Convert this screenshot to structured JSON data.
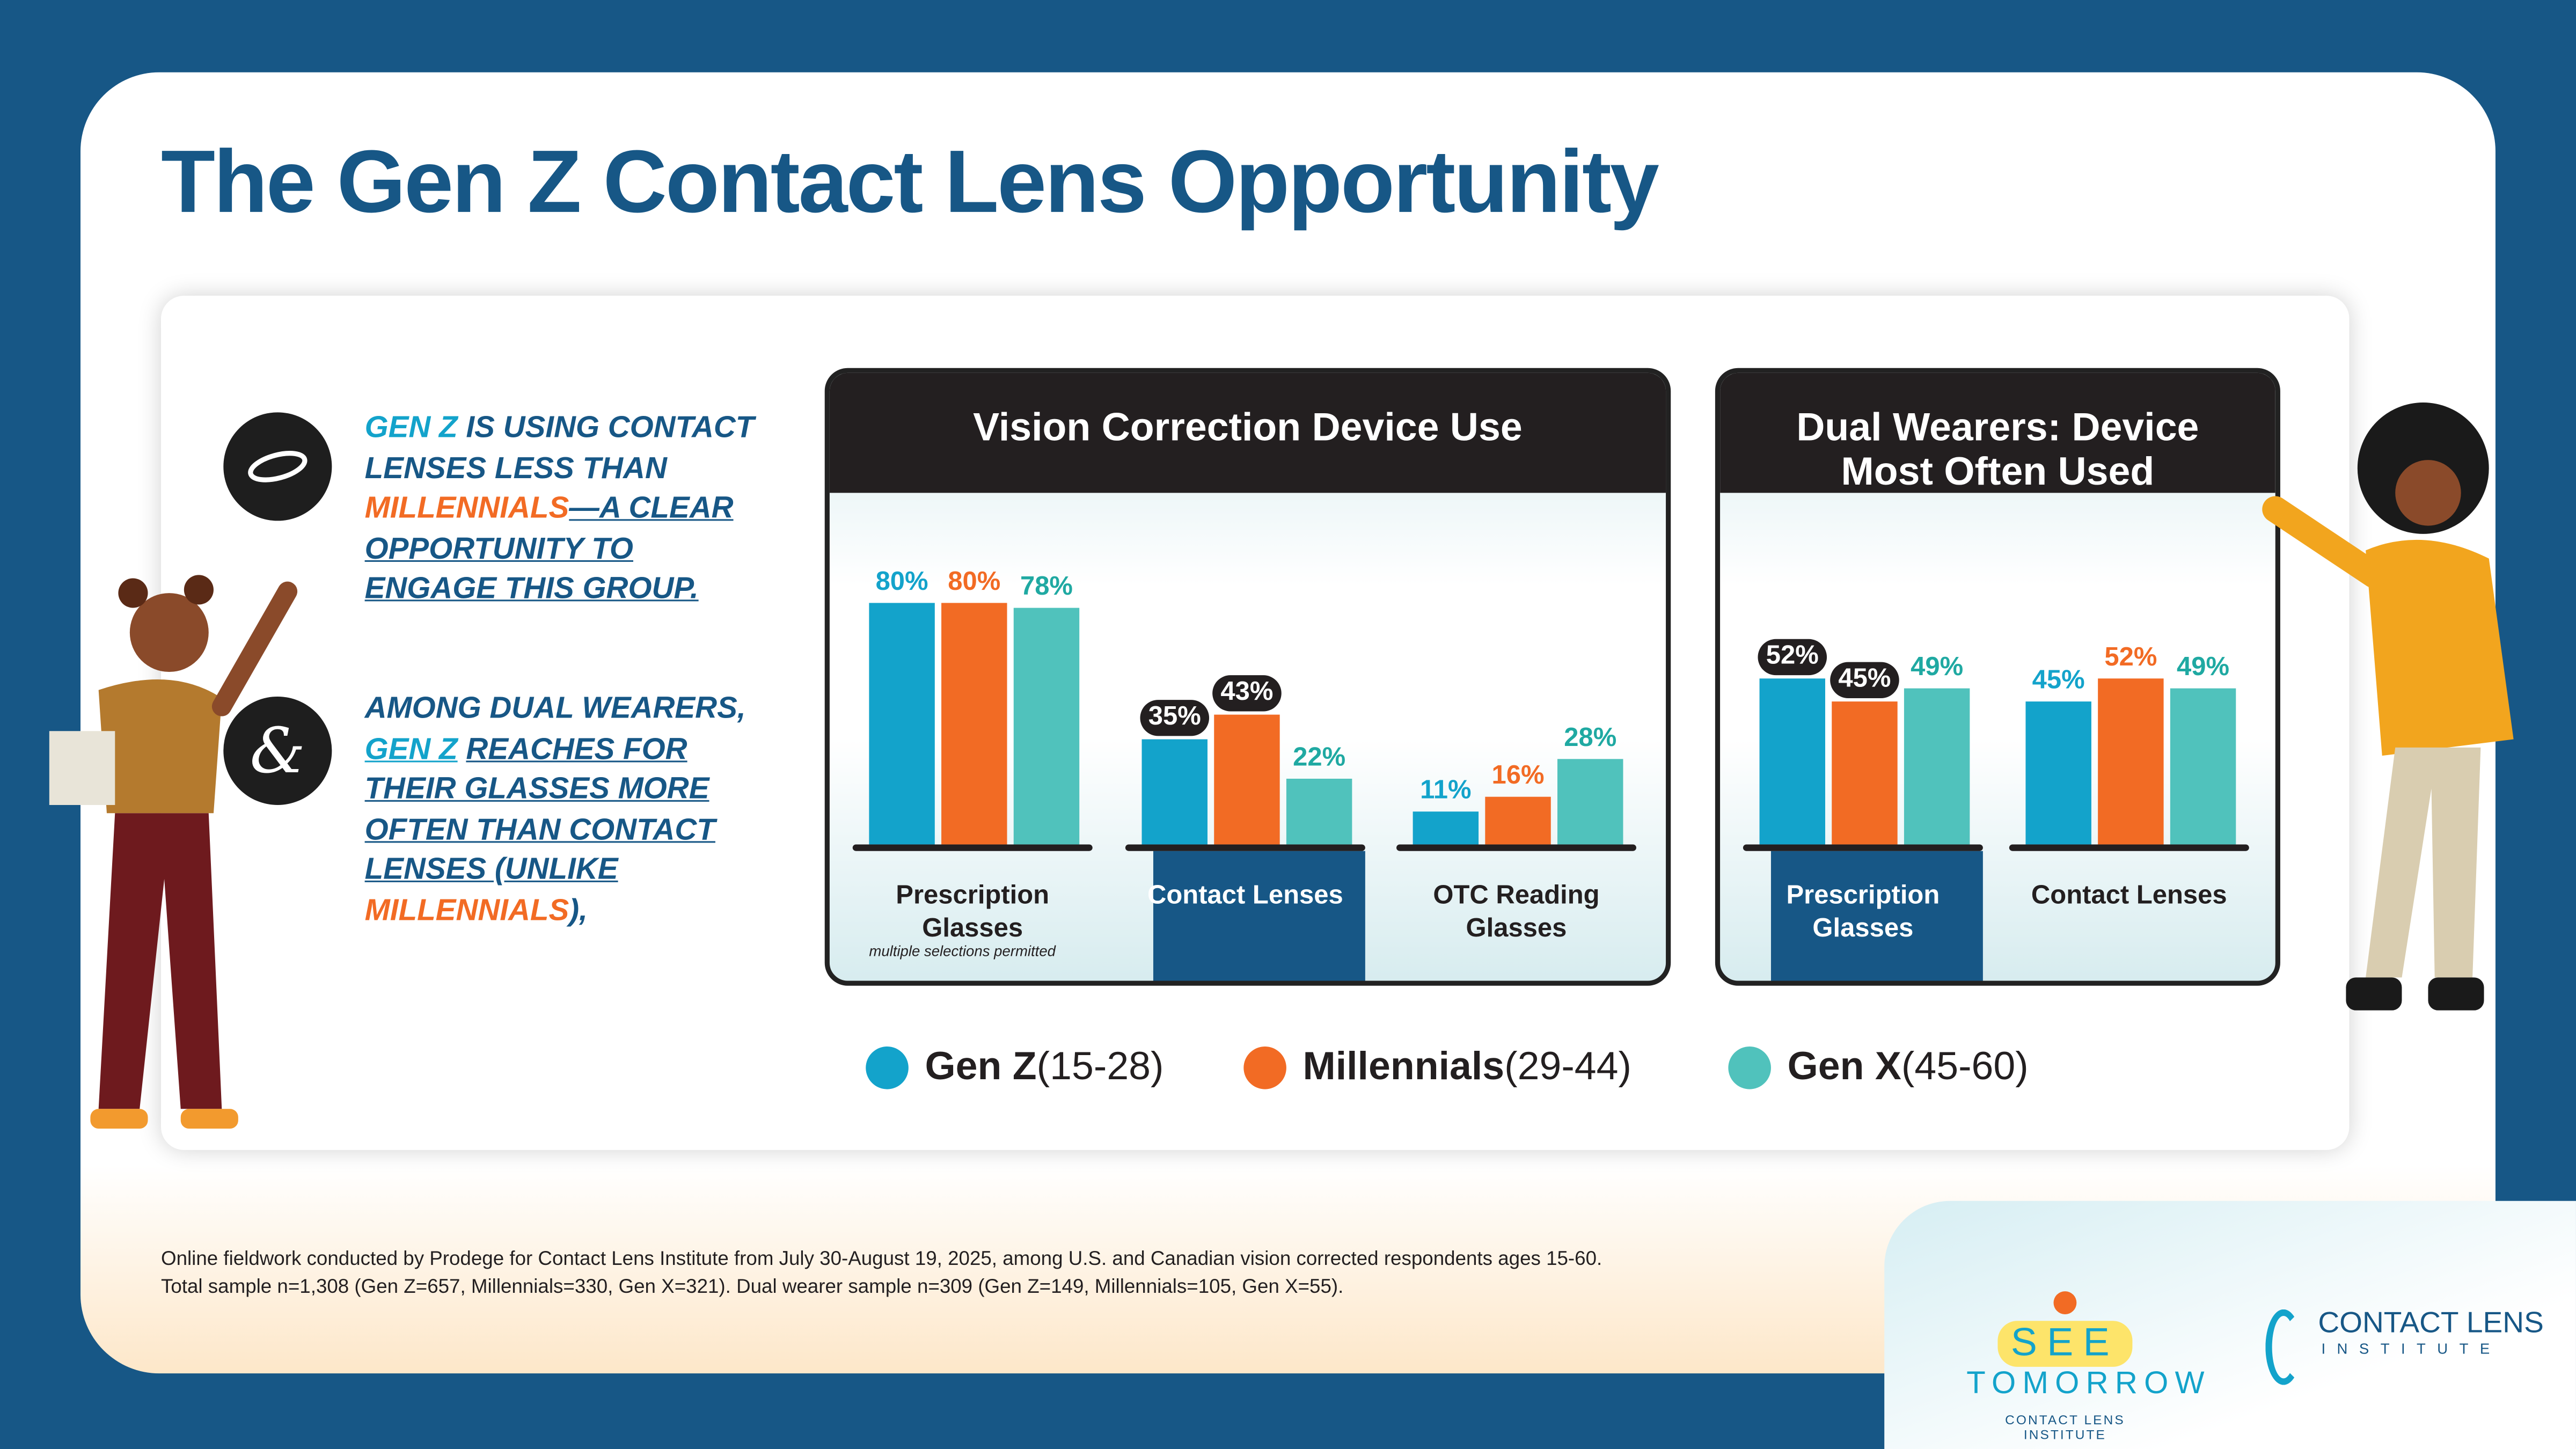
{
  "title": "The Gen Z Contact Lens Opportunity",
  "bullets": [
    {
      "icon": "contact-lens-icon",
      "parts": [
        "GEN Z",
        "IS USING CONTACT LENSES LESS THAN",
        "MILLENNIALS",
        "—A CLEAR OPPORTUNITY TO ENGAGE THIS GROUP."
      ]
    },
    {
      "icon": "ampersand-icon",
      "icon_text": "&",
      "parts": [
        "AMONG DUAL WEARERS,",
        "GEN Z",
        "REACHES FOR THEIR GLASSES MORE OFTEN THAN CONTACT LENSES (UNLIKE",
        "MILLENNIALS",
        "),"
      ]
    }
  ],
  "colors": {
    "gen_z": "#13a3cb",
    "millennials": "#f26b24",
    "gen_x": "#50c2bc",
    "navy": "#175786"
  },
  "chart_data": [
    {
      "type": "bar",
      "title": "Vision Correction Device Use",
      "categories": [
        "Prescription Glasses",
        "Contact Lenses",
        "OTC Reading Glasses"
      ],
      "highlight": "Contact Lenses",
      "note": "multiple selections permitted",
      "unit": "%",
      "series": [
        {
          "name": "Gen Z (15-28)",
          "values": [
            80,
            35,
            11
          ]
        },
        {
          "name": "Millennials (29-44)",
          "values": [
            80,
            43,
            16
          ]
        },
        {
          "name": "Gen X  (45-60)",
          "values": [
            78,
            22,
            28
          ]
        }
      ],
      "ylim": [
        0,
        100
      ]
    },
    {
      "type": "bar",
      "title": "Dual Wearers: Device Most Often Used",
      "categories": [
        "Prescription Glasses",
        "Contact Lenses"
      ],
      "highlight": "Prescription Glasses",
      "unit": "%",
      "series": [
        {
          "name": "Gen Z (15-28)",
          "values": [
            52,
            45
          ]
        },
        {
          "name": "Millennials (29-44)",
          "values": [
            45,
            52
          ]
        },
        {
          "name": "Gen X  (45-60)",
          "values": [
            49,
            49
          ]
        }
      ],
      "ylim": [
        0,
        100
      ]
    }
  ],
  "legend": [
    {
      "bold": "Gen Z",
      "rest": " (15-28)"
    },
    {
      "bold": "Millennials",
      "rest": " (29-44)"
    },
    {
      "bold": "Gen X",
      "rest": "  (45-60)"
    }
  ],
  "footnote": [
    "Online fieldwork conducted by Prodege for Contact Lens Institute from July 30-August 19, 2025, among U.S. and Canadian vision corrected respondents ages 15-60.",
    "Total sample n=1,308 (Gen Z=657, Millennials=330, Gen X=321). Dual wearer sample n=309 (Gen Z=149, Millennials=105, Gen X=55)."
  ],
  "logos": {
    "see": "SEE",
    "tomorrow": "TOMORROW",
    "sub": "CONTACT LENS INSTITUTE",
    "cli1": "CONTACT LENS",
    "cli2": "INSTITUTE"
  }
}
